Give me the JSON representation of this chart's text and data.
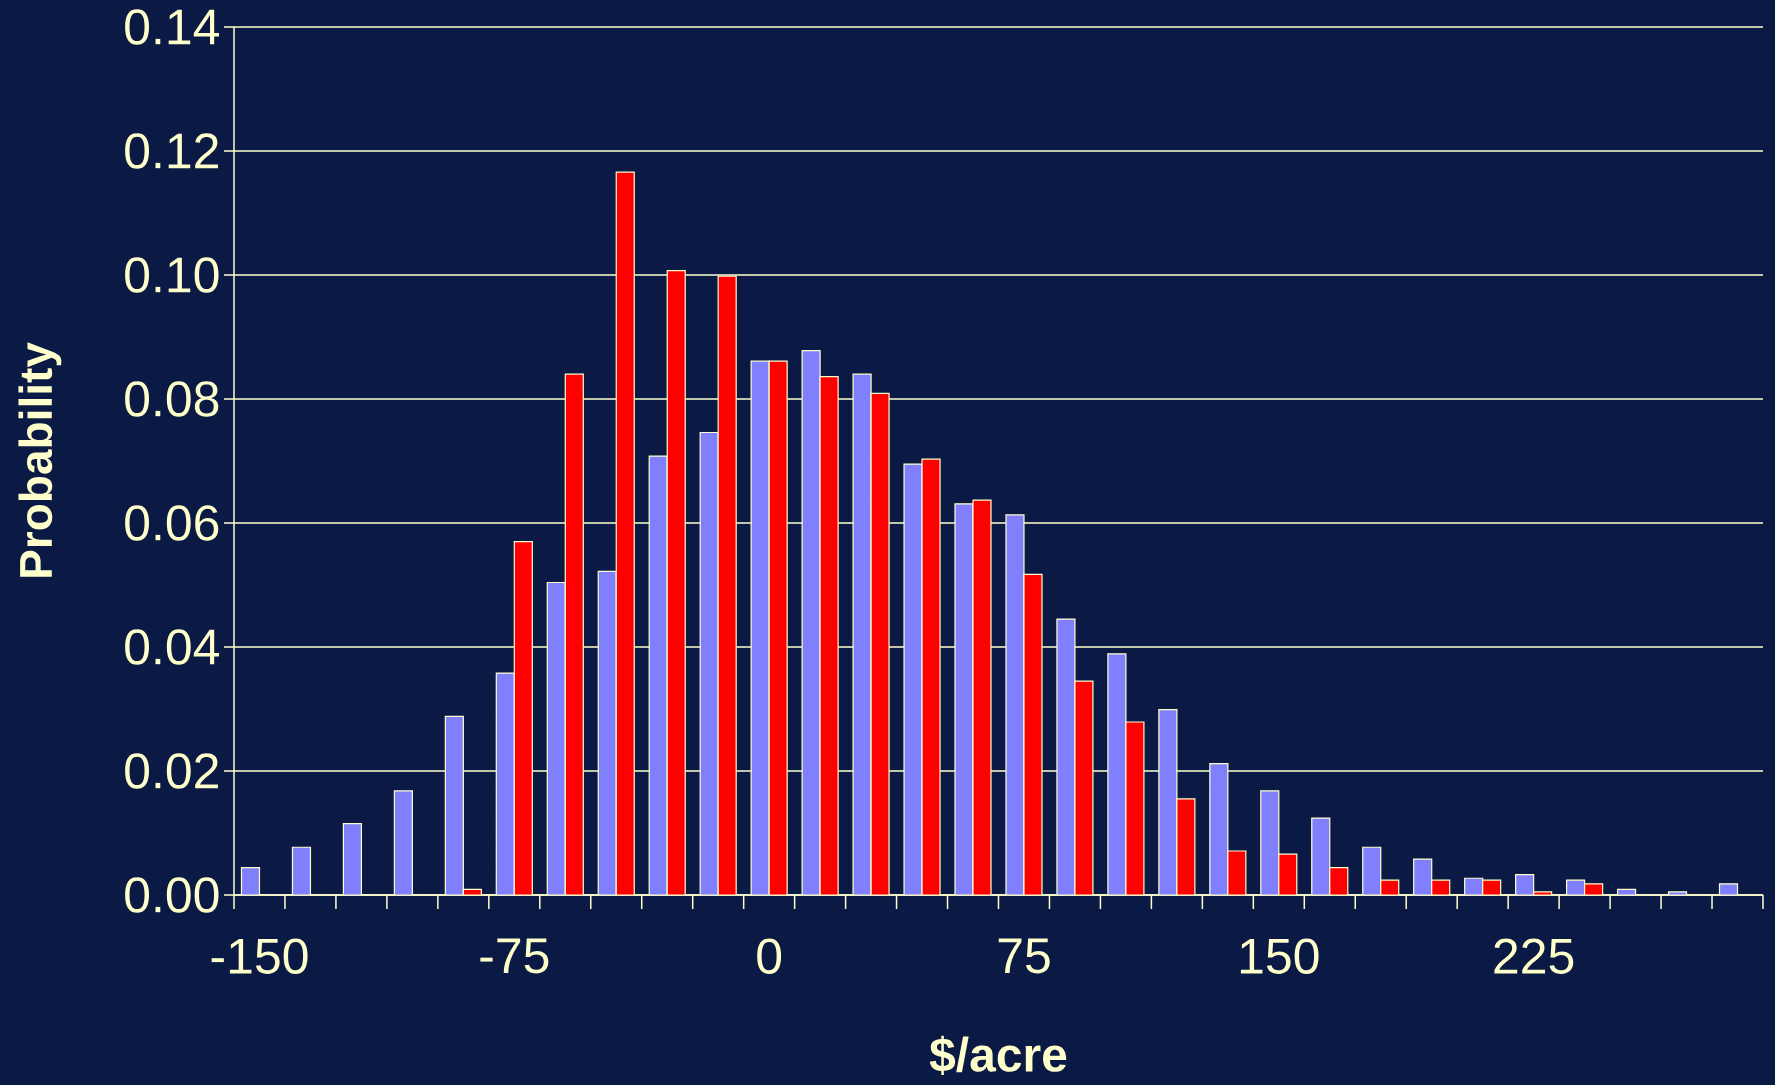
{
  "chart_data": {
    "type": "bar",
    "xlabel": "$/acre",
    "ylabel": "Probability",
    "categories": [
      "-150",
      null,
      null,
      null,
      null,
      "-75",
      null,
      null,
      null,
      null,
      "0",
      null,
      null,
      null,
      null,
      "75",
      null,
      null,
      null,
      null,
      "150",
      null,
      null,
      null,
      null,
      "225",
      null,
      null,
      null,
      null
    ],
    "series": [
      {
        "color": "#8080ff",
        "values": [
          0.0044,
          0.0077,
          0.0115,
          0.0168,
          0.0288,
          0.0358,
          0.0504,
          0.0522,
          0.0708,
          0.0746,
          0.0861,
          0.0878,
          0.084,
          0.0695,
          0.0631,
          0.0613,
          0.0445,
          0.0389,
          0.0299,
          0.0212,
          0.0168,
          0.0124,
          0.0077,
          0.0058,
          0.0027,
          0.0033,
          0.0024,
          0.0009,
          0.0005,
          0.0018
        ]
      },
      {
        "color": "#ff0000",
        "values": [
          0,
          0,
          0,
          0,
          0.0009,
          0.057,
          0.084,
          0.1166,
          0.1007,
          0.0998,
          0.0861,
          0.0836,
          0.0809,
          0.0703,
          0.0637,
          0.0517,
          0.0345,
          0.0279,
          0.0155,
          0.0071,
          0.0066,
          0.0044,
          0.0024,
          0.0024,
          0.0024,
          0.0005,
          0.0018,
          0,
          0,
          0
        ]
      }
    ],
    "ylim": [
      0,
      0.14
    ],
    "yticks": [
      {
        "value": 0,
        "label": "0.00"
      },
      {
        "value": 0.02,
        "label": "0.02"
      },
      {
        "value": 0.04,
        "label": "0.04"
      },
      {
        "value": 0.06,
        "label": "0.06"
      },
      {
        "value": 0.08,
        "label": "0.08"
      },
      {
        "value": 0.1,
        "label": "0.10"
      },
      {
        "value": 0.12,
        "label": "0.12"
      },
      {
        "value": 0.14,
        "label": "0.14"
      }
    ],
    "grid": "y"
  }
}
